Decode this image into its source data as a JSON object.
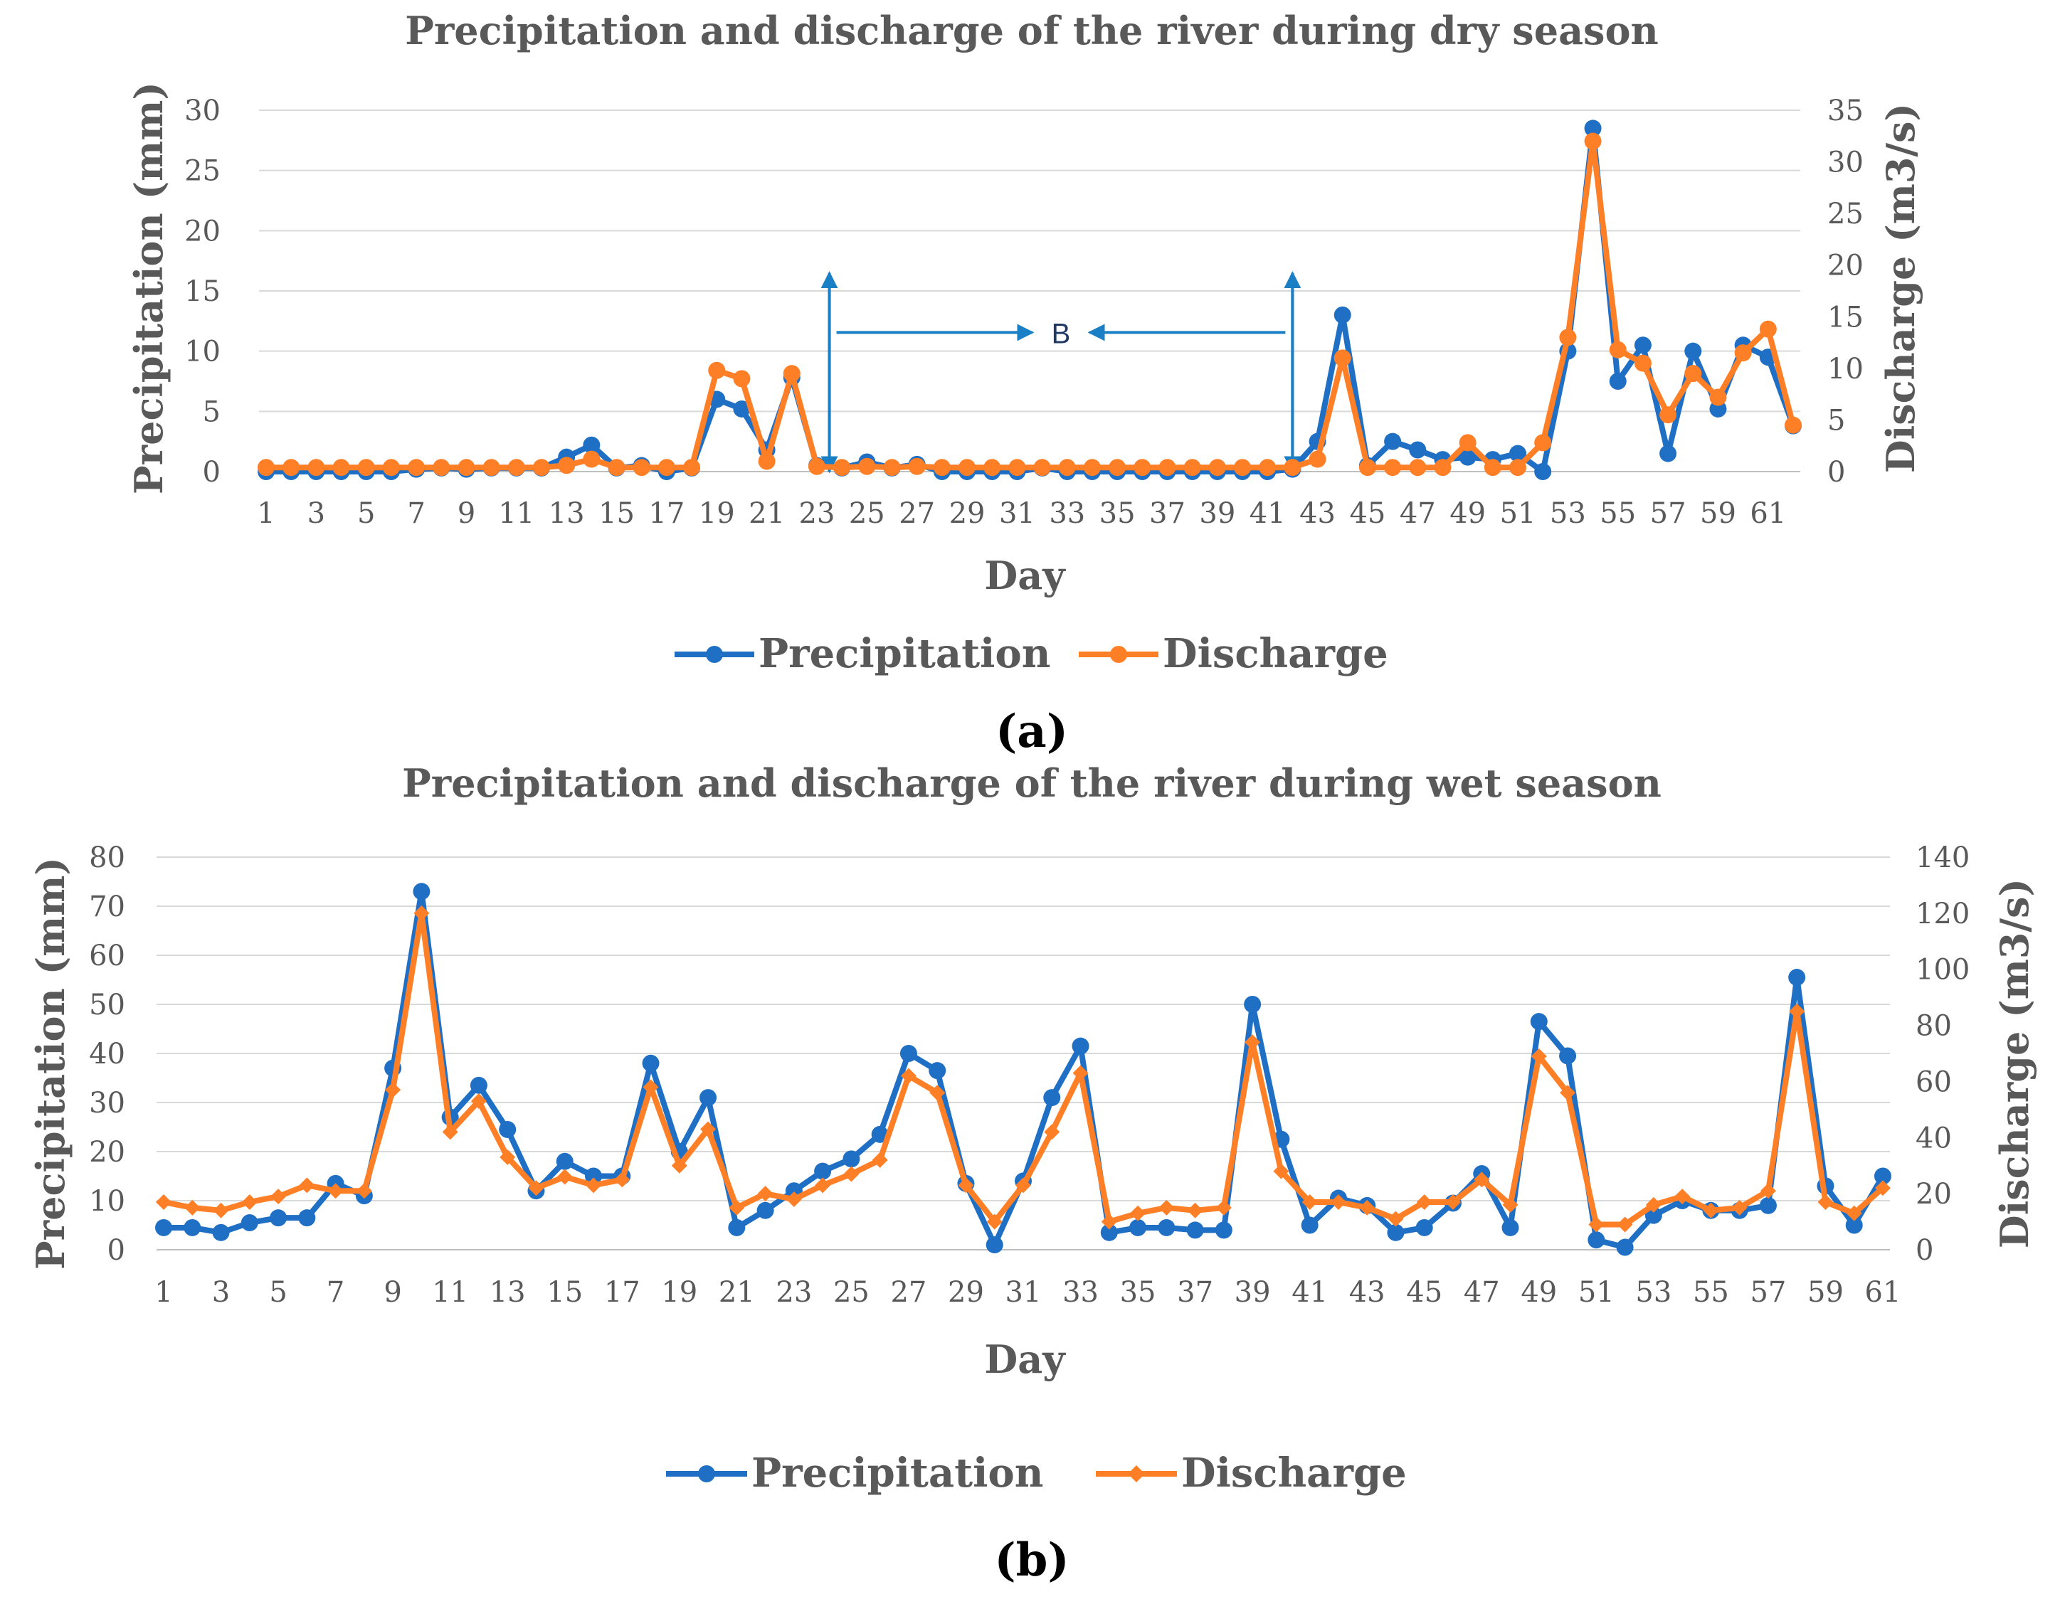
{
  "colors": {
    "precipitation": "#1f6fc5",
    "discharge": "#ff7f27",
    "annotation": "#1a7fc4"
  },
  "chart_data": [
    {
      "type": "line",
      "panel": "(a)",
      "title": "Precipitation and discharge of the river during dry season",
      "xlabel": "Day",
      "ylabel_left": "Precipitation (mm)",
      "ylabel_right": "Discharge (m3/s)",
      "ylim_left": [
        0,
        30
      ],
      "ylim_right": [
        0,
        35
      ],
      "yticks_left": [
        "0",
        "5",
        "10",
        "15",
        "20",
        "25",
        "30"
      ],
      "yticks_right": [
        "0",
        "5",
        "10",
        "15",
        "20",
        "25",
        "30",
        "35"
      ],
      "x": [
        1,
        2,
        3,
        4,
        5,
        6,
        7,
        8,
        9,
        10,
        11,
        12,
        13,
        14,
        15,
        16,
        17,
        18,
        19,
        20,
        21,
        22,
        23,
        24,
        25,
        26,
        27,
        28,
        29,
        30,
        31,
        32,
        33,
        34,
        35,
        36,
        37,
        38,
        39,
        40,
        41,
        42,
        43,
        44,
        45,
        46,
        47,
        48,
        49,
        50,
        51,
        52,
        53,
        54,
        55,
        56,
        57,
        58,
        59,
        60,
        61,
        62
      ],
      "xtick_labels": [
        "1",
        "3",
        "5",
        "7",
        "9",
        "11",
        "13",
        "15",
        "17",
        "19",
        "21",
        "23",
        "25",
        "27",
        "29",
        "31",
        "33",
        "35",
        "37",
        "39",
        "41",
        "43",
        "45",
        "47",
        "49",
        "51",
        "53",
        "55",
        "57",
        "59",
        "61"
      ],
      "legend_position": "bottom",
      "annotation": {
        "label": "B",
        "from_day": 23.5,
        "to_day": 42,
        "height": 16.5
      },
      "series": [
        {
          "name": "Precipitation",
          "axis": "left",
          "values": [
            0,
            0,
            0,
            0,
            0,
            0,
            0.2,
            0.3,
            0.2,
            0.3,
            0.3,
            0.3,
            1.2,
            2.2,
            0.3,
            0.5,
            0,
            0.3,
            6.0,
            5.2,
            1.8,
            7.8,
            0.5,
            0.3,
            0.8,
            0.3,
            0.6,
            0,
            0,
            0,
            0,
            0.3,
            0,
            0,
            0,
            0,
            0,
            0,
            0,
            0,
            0,
            0.2,
            2.5,
            13.0,
            0.5,
            2.5,
            1.8,
            1.0,
            1.2,
            1.0,
            1.5,
            0,
            10.0,
            28.5,
            7.5,
            10.5,
            1.5,
            10.0,
            5.2,
            10.5,
            9.5,
            3.8
          ]
        },
        {
          "name": "Discharge",
          "axis": "right",
          "values": [
            0.4,
            0.4,
            0.4,
            0.4,
            0.4,
            0.4,
            0.4,
            0.4,
            0.4,
            0.4,
            0.4,
            0.4,
            0.6,
            1.2,
            0.4,
            0.4,
            0.4,
            0.4,
            9.8,
            9.0,
            1.0,
            9.5,
            0.5,
            0.4,
            0.5,
            0.4,
            0.5,
            0.4,
            0.4,
            0.4,
            0.4,
            0.4,
            0.4,
            0.4,
            0.4,
            0.4,
            0.4,
            0.4,
            0.4,
            0.4,
            0.4,
            0.4,
            1.2,
            11.0,
            0.4,
            0.4,
            0.4,
            0.4,
            2.8,
            0.4,
            0.4,
            2.8,
            13.0,
            32.0,
            11.8,
            10.5,
            5.5,
            9.5,
            7.2,
            11.5,
            13.8,
            4.5
          ]
        }
      ]
    },
    {
      "type": "line",
      "panel": "(b)",
      "title": "Precipitation and discharge of the river during wet season",
      "xlabel": "Day",
      "ylabel_left": "Precipitation (mm)",
      "ylabel_right": "Discharge (m3/s)",
      "ylim_left": [
        0,
        80
      ],
      "ylim_right": [
        0,
        140
      ],
      "yticks_left": [
        "0",
        "10",
        "20",
        "30",
        "40",
        "50",
        "60",
        "70",
        "80"
      ],
      "yticks_right": [
        "0",
        "20",
        "40",
        "60",
        "80",
        "100",
        "120",
        "140"
      ],
      "x": [
        1,
        2,
        3,
        4,
        5,
        6,
        7,
        8,
        9,
        10,
        11,
        12,
        13,
        14,
        15,
        16,
        17,
        18,
        19,
        20,
        21,
        22,
        23,
        24,
        25,
        26,
        27,
        28,
        29,
        30,
        31,
        32,
        33,
        34,
        35,
        36,
        37,
        38,
        39,
        40,
        41,
        42,
        43,
        44,
        45,
        46,
        47,
        48,
        49,
        50,
        51,
        52,
        53,
        54,
        55,
        56,
        57,
        58,
        59,
        60,
        61
      ],
      "xtick_labels": [
        "1",
        "3",
        "5",
        "7",
        "9",
        "11",
        "13",
        "15",
        "17",
        "19",
        "21",
        "23",
        "25",
        "27",
        "29",
        "31",
        "33",
        "35",
        "37",
        "39",
        "41",
        "43",
        "45",
        "47",
        "49",
        "51",
        "53",
        "55",
        "57",
        "59",
        "61"
      ],
      "legend_position": "bottom",
      "series": [
        {
          "name": "Precipitation",
          "axis": "left",
          "values": [
            4.5,
            4.5,
            3.5,
            5.5,
            6.5,
            6.5,
            13.5,
            11,
            37,
            73,
            27,
            33.5,
            24.5,
            12,
            18,
            15,
            15,
            38,
            20,
            31,
            4.5,
            8,
            12,
            16,
            18.5,
            23.5,
            40,
            36.5,
            13.5,
            1,
            14,
            31,
            41.5,
            3.5,
            4.5,
            4.5,
            4,
            4,
            50,
            22.5,
            5,
            10.5,
            9,
            3.5,
            4.5,
            9.5,
            15.5,
            4.5,
            46.5,
            39.5,
            2,
            0.5,
            7,
            10,
            8,
            8,
            9,
            55.5,
            13,
            5,
            15
          ]
        },
        {
          "name": "Discharge",
          "axis": "right",
          "values": [
            17,
            15,
            14,
            17,
            19,
            23,
            21,
            21,
            57,
            120,
            42,
            53,
            33,
            22,
            26,
            23,
            25,
            58,
            30,
            43,
            15,
            20,
            18,
            23,
            27,
            32,
            62,
            56,
            23,
            10,
            23,
            42,
            63,
            10,
            13,
            15,
            14,
            15,
            74,
            28,
            17,
            17,
            15,
            11,
            17,
            17,
            25,
            16,
            69,
            56,
            9,
            9,
            16,
            19,
            14,
            15,
            21,
            85,
            17,
            13,
            22
          ]
        }
      ]
    }
  ]
}
